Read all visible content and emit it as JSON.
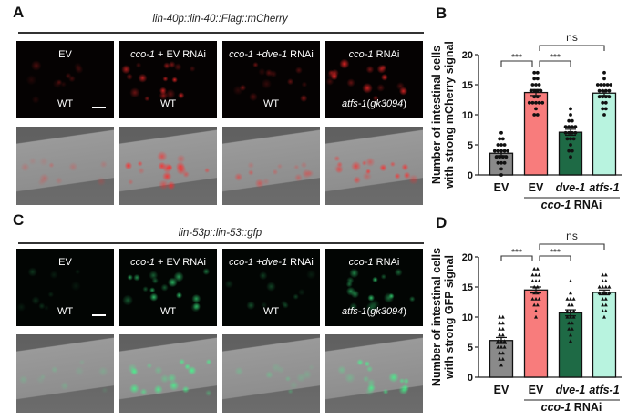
{
  "panels": [
    {
      "label": "A",
      "title": "lin-40p::lin-40::Flag::mCherry",
      "channel": "mCherry",
      "channel_color": "#ff2a2a",
      "images": [
        {
          "top": [
            {
              "t": "EV",
              "i": false
            }
          ],
          "bottom": [
            {
              "t": "WT",
              "i": false
            }
          ],
          "scale_bar": true
        },
        {
          "top": [
            {
              "t": "cco-1",
              "i": true
            },
            {
              "t": " + EV RNAi",
              "i": false
            }
          ],
          "bottom": [
            {
              "t": "WT",
              "i": false
            }
          ]
        },
        {
          "top": [
            {
              "t": "cco-1",
              "i": true
            },
            {
              "t": " +",
              "i": false
            },
            {
              "t": "dve-1",
              "i": true
            },
            {
              "t": " RNAi",
              "i": false
            }
          ],
          "bottom": [
            {
              "t": "WT",
              "i": false
            }
          ]
        },
        {
          "top": [
            {
              "t": "cco-1",
              "i": true
            },
            {
              "t": " RNAi",
              "i": false
            }
          ],
          "bottom": [
            {
              "t": "atfs-1",
              "i": true
            },
            {
              "t": "(",
              "i": false
            },
            {
              "t": "gk3094",
              "i": true
            },
            {
              "t": ")",
              "i": false
            }
          ]
        }
      ]
    },
    {
      "label": "C",
      "title": "lin-53p::lin-53::gfp",
      "channel": "GFP",
      "channel_color": "#3dff8a",
      "images": [
        {
          "top": [
            {
              "t": "EV",
              "i": false
            }
          ],
          "bottom": [
            {
              "t": "WT",
              "i": false
            }
          ],
          "scale_bar": true
        },
        {
          "top": [
            {
              "t": "cco-1",
              "i": true
            },
            {
              "t": " + EV RNAi",
              "i": false
            }
          ],
          "bottom": [
            {
              "t": "WT",
              "i": false
            }
          ]
        },
        {
          "top": [
            {
              "t": "cco-1",
              "i": true
            },
            {
              "t": " +",
              "i": false
            },
            {
              "t": "dve-1",
              "i": true
            },
            {
              "t": " RNAi",
              "i": false
            }
          ],
          "bottom": [
            {
              "t": "WT",
              "i": false
            }
          ]
        },
        {
          "top": [
            {
              "t": "cco-1",
              "i": true
            },
            {
              "t": " RNAi",
              "i": false
            }
          ],
          "bottom": [
            {
              "t": "atfs-1",
              "i": true
            },
            {
              "t": "(",
              "i": false
            },
            {
              "t": "gk3094",
              "i": true
            },
            {
              "t": ")",
              "i": false
            }
          ]
        }
      ]
    }
  ],
  "chart_data": [
    {
      "panel": "B",
      "type": "bar",
      "ylabel": [
        "Number of intestinal cells",
        "with strong mCherry signal"
      ],
      "ylim": [
        0,
        20
      ],
      "yticks": [
        0,
        5,
        10,
        15,
        20
      ],
      "categories": [
        "EV",
        "EV",
        "dve-1",
        "atfs-1"
      ],
      "group_label": "cco-1 RNAi",
      "group_label_italic": "cco-1",
      "colors": [
        "#8a8a8a",
        "#f87c7c",
        "#1e6a45",
        "#b8f3df"
      ],
      "marker": "circle",
      "values": [
        3.6,
        13.7,
        7.1,
        13.6
      ],
      "sem": [
        0.4,
        0.5,
        0.5,
        0.4
      ],
      "points": [
        [
          7,
          6,
          6,
          5,
          5,
          5,
          4,
          4,
          4,
          4,
          4,
          3,
          3,
          3,
          3,
          2,
          2,
          2,
          1,
          0
        ],
        [
          17,
          17,
          16,
          16,
          15,
          15,
          15,
          14,
          14,
          14,
          14,
          13,
          13,
          12,
          12,
          12,
          12,
          12,
          11,
          10,
          10
        ],
        [
          11,
          10,
          9,
          9,
          8,
          8,
          8,
          8,
          7,
          7,
          7,
          7,
          6,
          6,
          6,
          5,
          4,
          4,
          3
        ],
        [
          17,
          16,
          15,
          15,
          15,
          15,
          15,
          14,
          14,
          14,
          14,
          13,
          13,
          13,
          13,
          12,
          12,
          11,
          11,
          10
        ]
      ],
      "significance": [
        {
          "from": 0,
          "to": 1,
          "label": "***"
        },
        {
          "from": 1,
          "to": 2,
          "label": "***"
        },
        {
          "from": 1,
          "to": 3,
          "label": "ns"
        }
      ]
    },
    {
      "panel": "D",
      "type": "bar",
      "ylabel": [
        "Number of intestinal cells",
        "with strong GFP signal"
      ],
      "ylim": [
        0,
        20
      ],
      "yticks": [
        0,
        5,
        10,
        15,
        20
      ],
      "categories": [
        "EV",
        "EV",
        "dve-1",
        "atfs-1"
      ],
      "group_label": "cco-1 RNAi",
      "group_label_italic": "cco-1",
      "colors": [
        "#8a8a8a",
        "#f87c7c",
        "#1e6a45",
        "#b8f3df"
      ],
      "marker": "triangle",
      "values": [
        6.1,
        14.5,
        10.7,
        14.1
      ],
      "sem": [
        0.5,
        0.5,
        0.5,
        0.4
      ],
      "points": [
        [
          10,
          10,
          9,
          9,
          8,
          8,
          7,
          7,
          6,
          6,
          6,
          5,
          5,
          5,
          4,
          4,
          3,
          3,
          2
        ],
        [
          18,
          18,
          17,
          17,
          17,
          16,
          16,
          16,
          15,
          15,
          14,
          14,
          13,
          13,
          13,
          12,
          12,
          11,
          10
        ],
        [
          16,
          14,
          13,
          13,
          13,
          12,
          12,
          11,
          11,
          11,
          10,
          10,
          10,
          9,
          9,
          8,
          8,
          7,
          6
        ],
        [
          17,
          17,
          16,
          16,
          15,
          15,
          15,
          15,
          14,
          14,
          14,
          14,
          13,
          13,
          12,
          12,
          11,
          11,
          10
        ]
      ],
      "significance": [
        {
          "from": 0,
          "to": 1,
          "label": "***"
        },
        {
          "from": 1,
          "to": 2,
          "label": "***"
        },
        {
          "from": 1,
          "to": 3,
          "label": "ns"
        }
      ]
    }
  ]
}
